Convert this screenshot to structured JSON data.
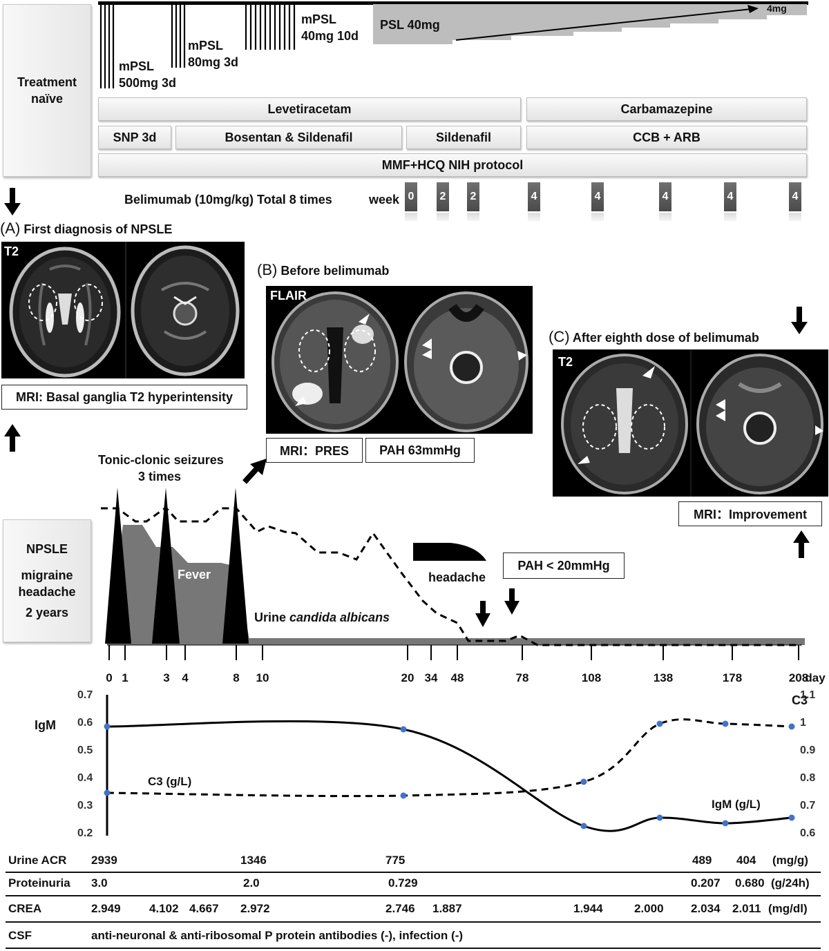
{
  "treatment": {
    "naive_box": [
      "Treatment",
      "naïve"
    ],
    "mpsl1": [
      "mPSL",
      "500mg 3d"
    ],
    "mpsl2": [
      "mPSL",
      "80mg 3d"
    ],
    "mpsl3": [
      "mPSL",
      "40mg 10d"
    ],
    "psl": "PSL 40mg",
    "psl_end": "4mg",
    "bars": {
      "levetiracetam": "Levetiracetam",
      "carbamazepine": "Carbamazepine",
      "snp": "SNP 3d",
      "bosentan": "Bosentan & Sildenafil",
      "sildenafil": "Sildenafil",
      "ccb": "CCB + ARB",
      "mmf": "MMF+HCQ NIH protocol"
    },
    "belimumab": "Belimumab (10mg/kg) Total 8 times",
    "week_label": "week",
    "weeks": [
      "0",
      "2",
      "2",
      "4",
      "4",
      "4",
      "4",
      "4"
    ]
  },
  "panels": {
    "a": {
      "letter": "(A)",
      "title": "First diagnosis of NPSLE",
      "seq": "T2",
      "caption": "MRI: Basal ganglia T2 hyperintensity"
    },
    "b": {
      "letter": "(B)",
      "title": "Before belimumab",
      "seq": "FLAIR",
      "caption1": "MRI：PRES",
      "caption2": "PAH 63mmHg"
    },
    "c": {
      "letter": "(C)",
      "title": "After eighth dose of belimumab",
      "seq": "T2",
      "caption": "MRI：Improvement"
    }
  },
  "timeline": {
    "npsle_box": [
      "NPSLE",
      "",
      "migraine",
      "headache",
      "2 years"
    ],
    "seizures": [
      "Tonic-clonic seizures",
      "3 times"
    ],
    "fever": "Fever",
    "urine_prefix": "Urine ",
    "urine_italic": "candida albicans",
    "headache": "headache",
    "pah": "PAH < 20mmHg",
    "day_ticks": [
      "0",
      "1",
      "3",
      "4",
      "8",
      "10",
      "20",
      "34",
      "48",
      "78",
      "108",
      "138",
      "178",
      "208"
    ],
    "day_unit": "day"
  },
  "chart_data": {
    "type": "line",
    "x": [
      0,
      20,
      108,
      138,
      178,
      208
    ],
    "series": [
      {
        "name": "IgM (g/L)",
        "axis": "left",
        "values": [
          0.59,
          0.58,
          0.23,
          0.26,
          0.24,
          0.26
        ]
      },
      {
        "name": "C3 (g/L)",
        "axis": "right",
        "values": [
          0.75,
          0.74,
          0.79,
          1.0,
          1.0,
          0.99
        ]
      }
    ],
    "left_label": "IgM",
    "right_label": "C3",
    "left_ticks": [
      "0.7",
      "0.6",
      "0.5",
      "0.4",
      "0.3",
      "0.2"
    ],
    "right_ticks": [
      "1.1",
      "1",
      "0.9",
      "0.8",
      "0.7",
      "0.6"
    ],
    "ylim_left": [
      0.2,
      0.7
    ],
    "ylim_right": [
      0.6,
      1.1
    ]
  },
  "table": {
    "acr": {
      "label": "Urine ACR",
      "values": [
        "2939",
        "1346",
        "775",
        "489",
        "404"
      ],
      "unit": "(mg/g)"
    },
    "prot": {
      "label": "Proteinuria",
      "values": [
        "3.0",
        "2.0",
        "0.729",
        "0.207",
        "0.680"
      ],
      "unit": "(g/24h)"
    },
    "crea": {
      "label": "CREA",
      "values": [
        "2.949",
        "4.102",
        "4.667",
        "2.972",
        "2.746",
        "1.887",
        "1.944",
        "2.000",
        "2.034",
        "2.011"
      ],
      "unit": "(mg/dl)"
    },
    "csf": {
      "label": "CSF",
      "text": "anti-neuronal & anti-ribosomal P protein antibodies (-), infection (-)"
    }
  }
}
